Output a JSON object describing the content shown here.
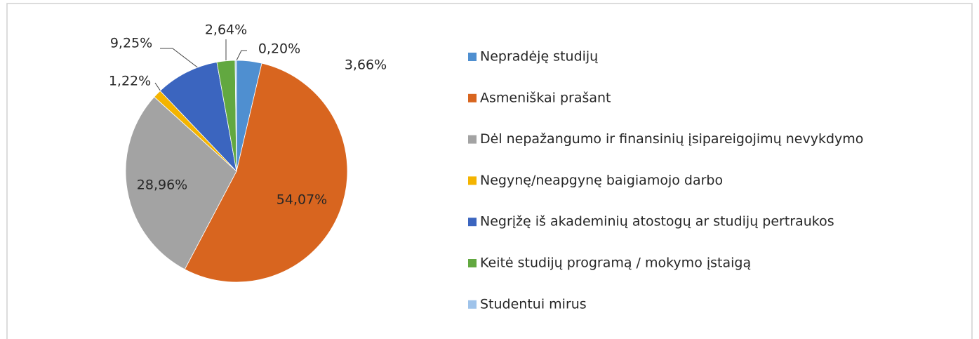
{
  "chart_data": {
    "type": "pie",
    "categories": [
      "Nepradėję studijų",
      "Asmeniškai prašant",
      "Dėl nepažangumo ir finansinių įsipareigojimų nevykdymo",
      "Negynę/neapgynę baigiamojo darbo",
      "Negrįžę iš akademinių atostogų ar studijų pertraukos",
      "Keitė studijų programą / mokymo įstaigą",
      "Studentui mirus"
    ],
    "values": [
      3.66,
      54.07,
      28.96,
      1.22,
      9.25,
      2.64,
      0.2
    ],
    "value_labels": [
      "3,66%",
      "54,07%",
      "28,96%",
      "1,22%",
      "9,25%",
      "2,64%",
      "0,20%"
    ],
    "colors": [
      "#4f8fd0",
      "#d8651f",
      "#a3a3a3",
      "#f4b400",
      "#3b65bf",
      "#62a840",
      "#9fc3ea"
    ],
    "legend": "right"
  }
}
